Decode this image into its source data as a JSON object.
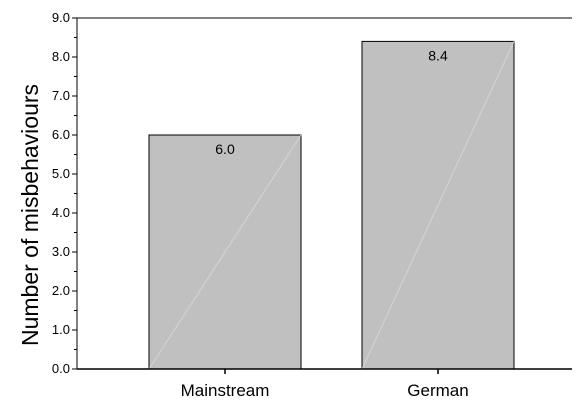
{
  "chart_data": {
    "type": "bar",
    "categories": [
      "Mainstream",
      "German"
    ],
    "values": [
      6.0,
      8.4
    ],
    "data_labels": [
      "6.0",
      "8.4"
    ],
    "ylabel": "Number of misbehaviours",
    "ylim": [
      0,
      9
    ],
    "yticks": [
      "0.0",
      "1.0",
      "2.0",
      "3.0",
      "4.0",
      "5.0",
      "6.0",
      "7.0",
      "8.0",
      "9.0"
    ],
    "grid": false,
    "legend": "none",
    "bar_color": "#c0c0c0",
    "bar_edge_color": "#000000"
  }
}
